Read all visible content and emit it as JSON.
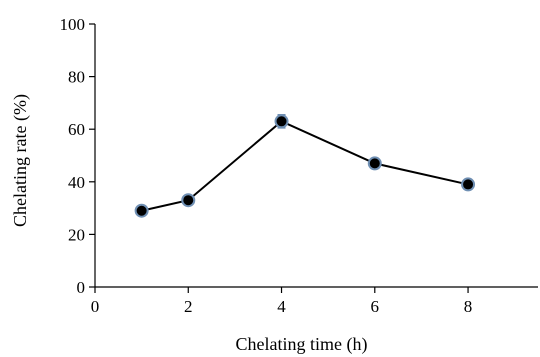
{
  "chart_data": {
    "type": "line",
    "title": "",
    "xlabel": "Chelating time (h)",
    "ylabel": "Chelating rate (%)",
    "xlim": [
      0,
      9.5
    ],
    "ylim": [
      0,
      100
    ],
    "xticks": [
      0,
      2,
      4,
      6,
      8
    ],
    "yticks": [
      0,
      20,
      40,
      60,
      80,
      100
    ],
    "xtick_labels": [
      "0",
      "2",
      "4",
      "6",
      "8"
    ],
    "ytick_labels": [
      "0",
      "20",
      "40",
      "60",
      "80",
      "100"
    ],
    "grid": false,
    "legend": "none",
    "series": [
      {
        "x": [
          1,
          2,
          4,
          6,
          8
        ],
        "values": [
          29,
          33,
          63,
          47,
          39
        ],
        "error": [
          1,
          1,
          2.5,
          1.5,
          1
        ],
        "color": "#000000",
        "marker_edge_color": "#6f8fb3"
      }
    ]
  }
}
